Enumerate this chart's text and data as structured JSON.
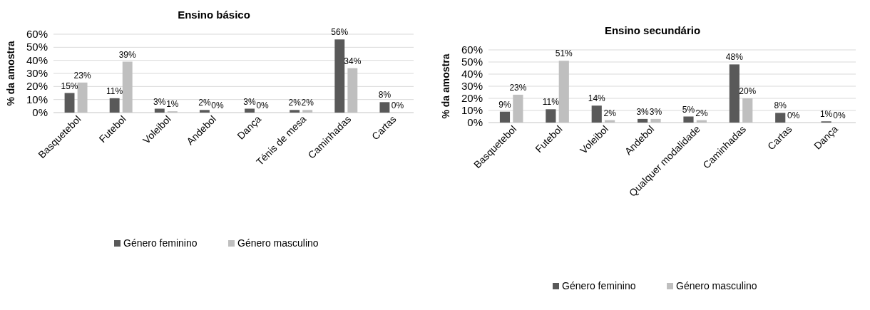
{
  "chart_data": [
    {
      "type": "bar",
      "title": "Ensino básico",
      "ylabel": "% da amostra",
      "categories": [
        "Basquetebol",
        "Futebol",
        "Voleibol",
        "Andebol",
        "Dança",
        "Ténis de mesa",
        "Caminhadas",
        "Cartas"
      ],
      "series": [
        {
          "name": "Género feminino",
          "color": "#595959",
          "values": [
            15,
            11,
            3,
            2,
            3,
            2,
            56,
            8
          ],
          "value_labels": [
            "15%",
            "11%",
            "3%",
            "2%",
            "3%",
            "2%",
            "56%",
            "8%"
          ]
        },
        {
          "name": "Género masculino",
          "color": "#bfbfbf",
          "values": [
            23,
            39,
            1,
            0,
            0,
            2,
            34,
            0
          ],
          "value_labels": [
            "23%",
            "39%",
            "1%",
            "0%",
            "0%",
            "2%",
            "34%",
            "0%"
          ]
        }
      ],
      "ylim": [
        0,
        60
      ],
      "yticks": [
        {
          "value": 0,
          "label": "0%"
        },
        {
          "value": 10,
          "label": "10%"
        },
        {
          "value": 20,
          "label": "20%"
        },
        {
          "value": 30,
          "label": "30%"
        },
        {
          "value": 40,
          "label": "40%"
        },
        {
          "value": 50,
          "label": "50%"
        },
        {
          "value": 60,
          "label": "60%"
        }
      ],
      "grid": "y",
      "legend": "bottom"
    },
    {
      "type": "bar",
      "title": "Ensino secundário",
      "ylabel": "% da amostra",
      "categories": [
        "Basquetebol",
        "Futebol",
        "Voleibol",
        "Andebol",
        "Qualquer modalidade",
        "Caminhadas",
        "Cartas",
        "Dança"
      ],
      "series": [
        {
          "name": "Género feminino",
          "color": "#595959",
          "values": [
            9,
            11,
            14,
            3,
            5,
            48,
            8,
            1
          ],
          "value_labels": [
            "9%",
            "11%",
            "14%",
            "3%",
            "5%",
            "48%",
            "8%",
            "1%"
          ]
        },
        {
          "name": "Género masculino",
          "color": "#bfbfbf",
          "values": [
            23,
            51,
            2,
            3,
            2,
            20,
            0,
            0
          ],
          "value_labels": [
            "23%",
            "51%",
            "2%",
            "3%",
            "2%",
            "20%",
            "0%",
            "0%"
          ]
        }
      ],
      "ylim": [
        0,
        60
      ],
      "yticks": [
        {
          "value": 0,
          "label": "0%"
        },
        {
          "value": 10,
          "label": "10%"
        },
        {
          "value": 20,
          "label": "20%"
        },
        {
          "value": 30,
          "label": "30%"
        },
        {
          "value": 40,
          "label": "40%"
        },
        {
          "value": 50,
          "label": "50%"
        },
        {
          "value": 60,
          "label": "60%"
        }
      ],
      "grid": "y",
      "legend": "bottom"
    }
  ]
}
